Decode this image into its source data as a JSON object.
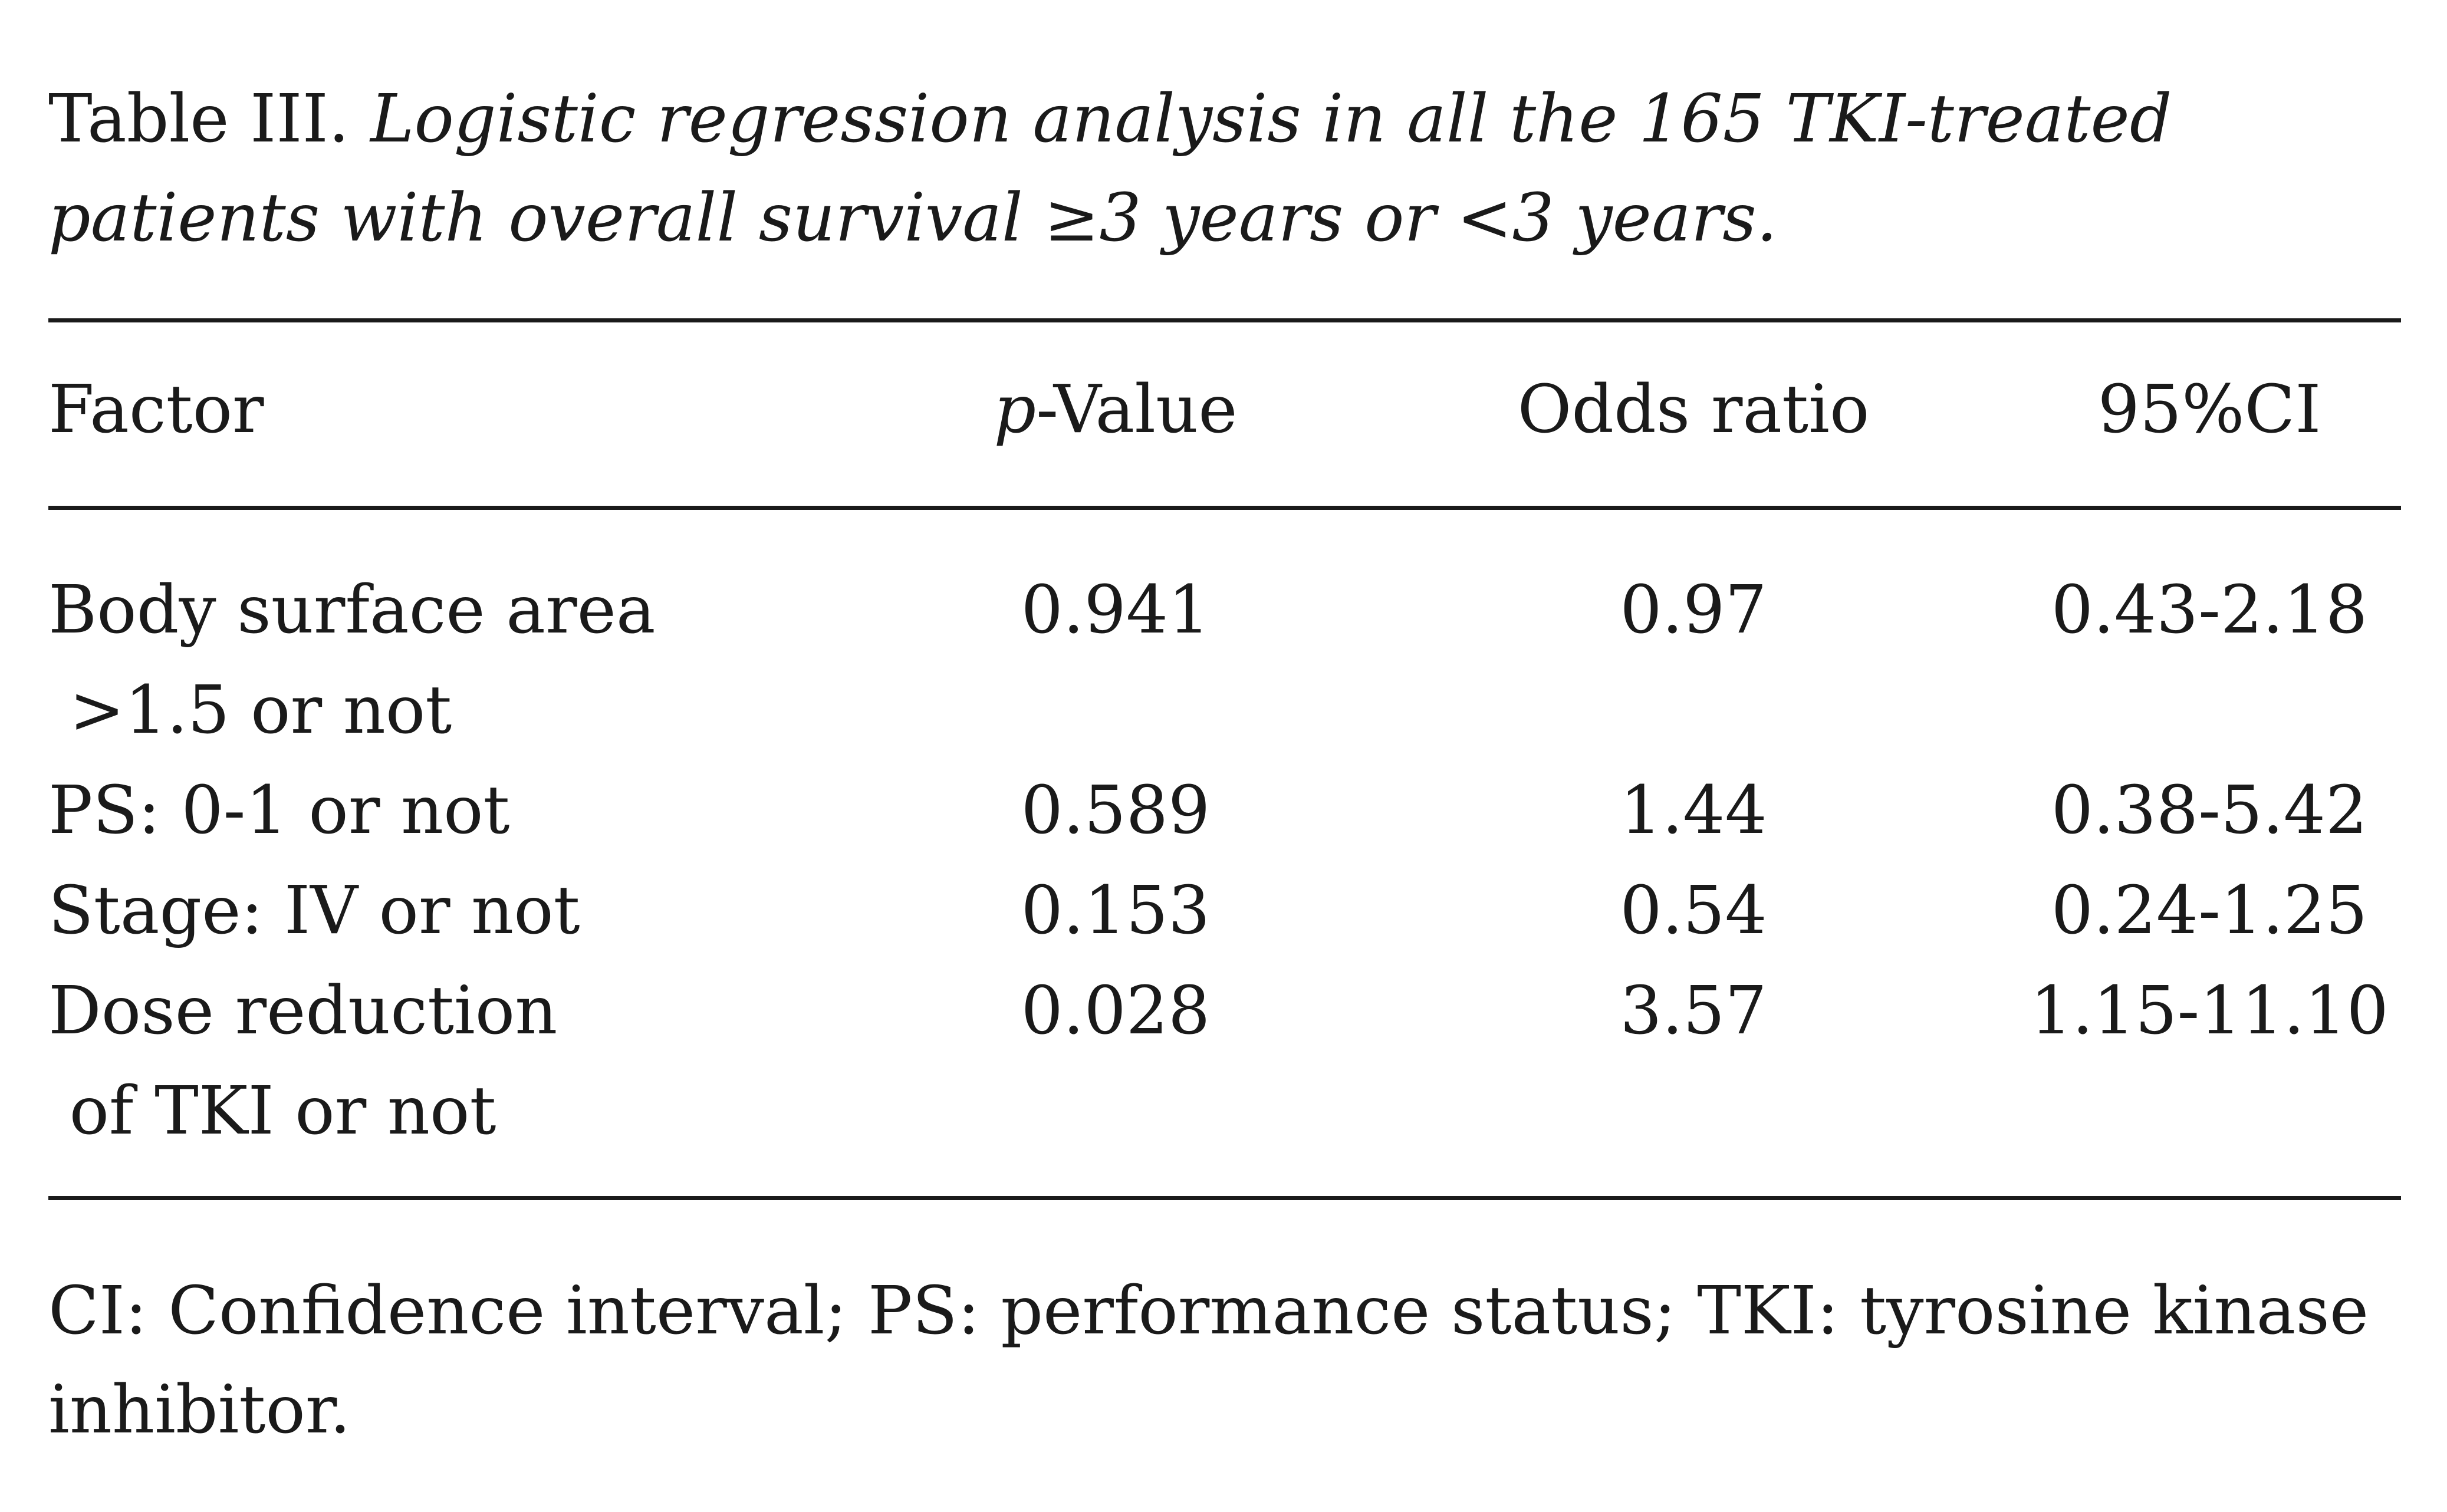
{
  "caption": {
    "label": "Table III.",
    "title": "Logistic regression analysis in all the 165 TKI-treated patients with overall survival ≥3 years or <3 years."
  },
  "table": {
    "headers": {
      "factor": "Factor",
      "p_italic": "p",
      "p_rest": "-Value",
      "odds_ratio": "Odds ratio",
      "ci": "95%CI"
    },
    "rows": [
      {
        "factor_line1": "Body surface area",
        "factor_line2": " >1.5 or not",
        "p_value": "0.941",
        "odds_ratio": "0.97",
        "ci": "0.43-2.18"
      },
      {
        "factor_line1": "PS: 0-1 or not",
        "factor_line2": "",
        "p_value": "0.589",
        "odds_ratio": "1.44",
        "ci": "0.38-5.42"
      },
      {
        "factor_line1": "Stage: IV or not",
        "factor_line2": "",
        "p_value": "0.153",
        "odds_ratio": "0.54",
        "ci": "0.24-1.25"
      },
      {
        "factor_line1": "Dose reduction",
        "factor_line2": " of TKI or not",
        "p_value": "0.028",
        "odds_ratio": "3.57",
        "ci": "1.15-11.10"
      }
    ]
  },
  "footnote": "CI: Confidence interval; PS: performance status; TKI: tyrosine kinase inhibitor."
}
